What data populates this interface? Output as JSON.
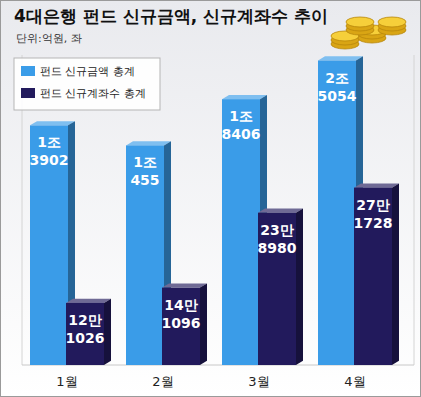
{
  "chart_data": {
    "type": "bar",
    "title": "4대은행 펀드 신규금액, 신규계좌수 추이",
    "subtitle": "단위:억원, 좌",
    "categories": [
      "1월",
      "2월",
      "3월",
      "4월"
    ],
    "series": [
      {
        "name": "펀드 신규금액 총계",
        "color": "#3a9ce8",
        "values": [
          13902,
          10455,
          18406,
          25054
        ],
        "value_labels": [
          "1조 3902",
          "1조 455",
          "1조 8406",
          "2조 5054"
        ]
      },
      {
        "name": "펀드 신규계좌수 총계",
        "color": "#221a5c",
        "axis": "y2",
        "values": [
          121026,
          141096,
          238980,
          271728
        ],
        "value_labels": [
          "12만 1026",
          "14만 1096",
          "23만 8980",
          "27만 1728"
        ]
      }
    ],
    "ylim": [
      -27300,
      26000
    ],
    "y2lim": [
      40000,
      445000
    ],
    "grid": false,
    "legend": "upper left",
    "data_labels": true,
    "tick_labels": "x"
  }
}
